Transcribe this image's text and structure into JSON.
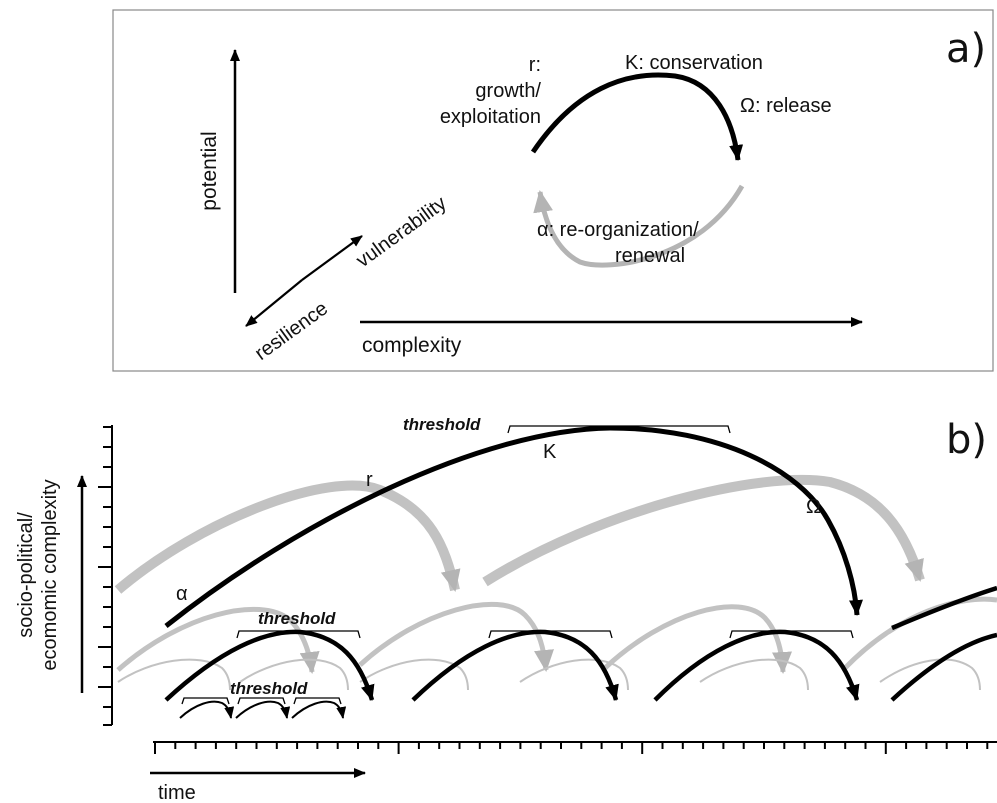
{
  "panel_a": {
    "tag": "a)",
    "axis_potential": "potential",
    "axis_complexity": "complexity",
    "axis_vulnerability": "vulnerability",
    "axis_resilience": "resilience",
    "phase_r_line1": "r:",
    "phase_r_line2": "growth/",
    "phase_r_line3": "exploitation",
    "phase_k": "K: conservation",
    "phase_omega": "Ω: release",
    "phase_alpha_line1": "α: re-organization/",
    "phase_alpha_line2": "renewal",
    "colors": {
      "foreground_loop": "#000000",
      "background_loop": "#b4b4b4"
    }
  },
  "panel_b": {
    "tag": "b)",
    "y_label_line1": "socio-political/",
    "y_label_line2": "ecomomic complexity",
    "x_label": "time",
    "threshold_large": "threshold",
    "threshold_mid": "threshold",
    "threshold_small": "threshold",
    "cycle_alpha": "α",
    "cycle_r": "r",
    "cycle_k": "K",
    "cycle_omega": "Ω",
    "colors": {
      "primary_cycle": "#000000",
      "shadow_cycle": "#c2c2c2"
    }
  }
}
